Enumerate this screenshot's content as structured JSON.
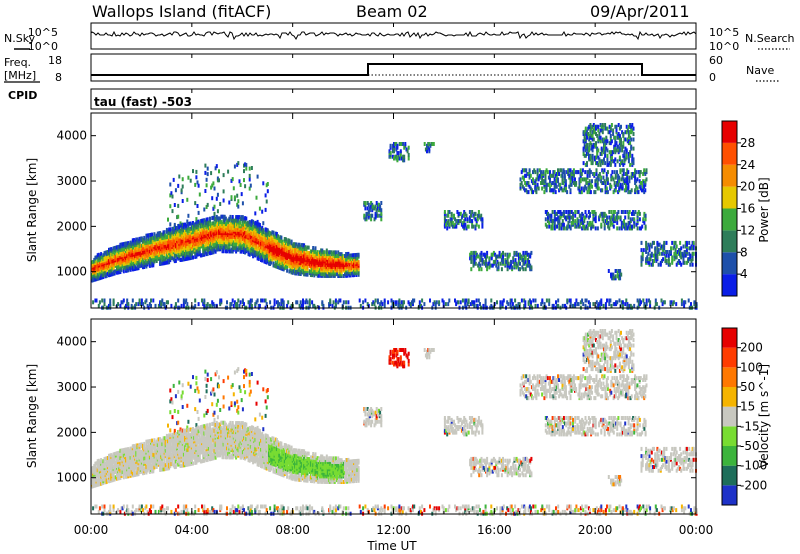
{
  "header": {
    "station": "Wallops Island (fitACF)",
    "beam": "Beam 02",
    "date": "09/Apr/2011"
  },
  "status_panels": {
    "nsky_label": "N.Sky",
    "nsky_top": "10^5",
    "nsky_bottom": "10^0",
    "nsearch_label": "N.Search",
    "nsearch_top": "10^5",
    "nsearch_bottom": "10^0",
    "freq_label_line1": "Freq.",
    "freq_label_line2": "[MHz]",
    "freq_top": "18",
    "freq_bottom": "8",
    "nave_label": "Nave",
    "nave_top": "60",
    "nave_bottom": "0",
    "cpid_label": "CPID",
    "cpid_value": "tau (fast) -503"
  },
  "chart_data": [
    {
      "type": "heatmap",
      "name": "power",
      "ylabel": "Slant Range [km]",
      "y_ticks": [
        "1000",
        "2000",
        "3000",
        "4000"
      ],
      "y_tick_values": [
        1000,
        2000,
        3000,
        4000
      ],
      "ylim": [
        200,
        4500
      ],
      "xlim_hours": [
        0,
        24
      ],
      "colorbar_label": "Power [dB]",
      "colorbar_ticks": [
        "4",
        "8",
        "12",
        "16",
        "20",
        "24",
        "28"
      ],
      "colorbar_colors": [
        "#0a1ee6",
        "#1e50aa",
        "#2e7d5a",
        "#3caa3c",
        "#e6c800",
        "#f58c00",
        "#ff5000",
        "#e60000"
      ],
      "echo_band": [
        {
          "t": 0.0,
          "r": 1100
        },
        {
          "t": 1.0,
          "r": 1320
        },
        {
          "t": 2.0,
          "r": 1480
        },
        {
          "t": 3.0,
          "r": 1620
        },
        {
          "t": 4.0,
          "r": 1750
        },
        {
          "t": 5.0,
          "r": 1900
        },
        {
          "t": 6.0,
          "r": 1880
        },
        {
          "t": 7.0,
          "r": 1600
        },
        {
          "t": 8.0,
          "r": 1350
        },
        {
          "t": 9.0,
          "r": 1250
        },
        {
          "t": 10.0,
          "r": 1200
        }
      ]
    },
    {
      "type": "heatmap",
      "name": "velocity",
      "ylabel": "Slant Range [km]",
      "y_ticks": [
        "1000",
        "2000",
        "3000",
        "4000"
      ],
      "y_tick_values": [
        1000,
        2000,
        3000,
        4000
      ],
      "ylim": [
        200,
        4500
      ],
      "xlim_hours": [
        0,
        24
      ],
      "colorbar_label": "Velocity [m s^-1]",
      "colorbar_ticks": [
        "200",
        "100",
        "50",
        "15",
        "-15",
        "-50",
        "-100",
        "-200"
      ],
      "colorbar_colors": [
        "#1e32c8",
        "#1e6e5a",
        "#3cb43c",
        "#78dc32",
        "#c8c8c0",
        "#f5b400",
        "#ff7800",
        "#ff3c00",
        "#e60000"
      ]
    }
  ],
  "x_axis": {
    "label": "Time UT",
    "ticks": [
      "00:00",
      "04:00",
      "08:00",
      "12:00",
      "16:00",
      "20:00",
      "00:00"
    ],
    "tick_hours": [
      0,
      4,
      8,
      12,
      16,
      20,
      24
    ]
  },
  "colors": {
    "frame": "#000000"
  }
}
